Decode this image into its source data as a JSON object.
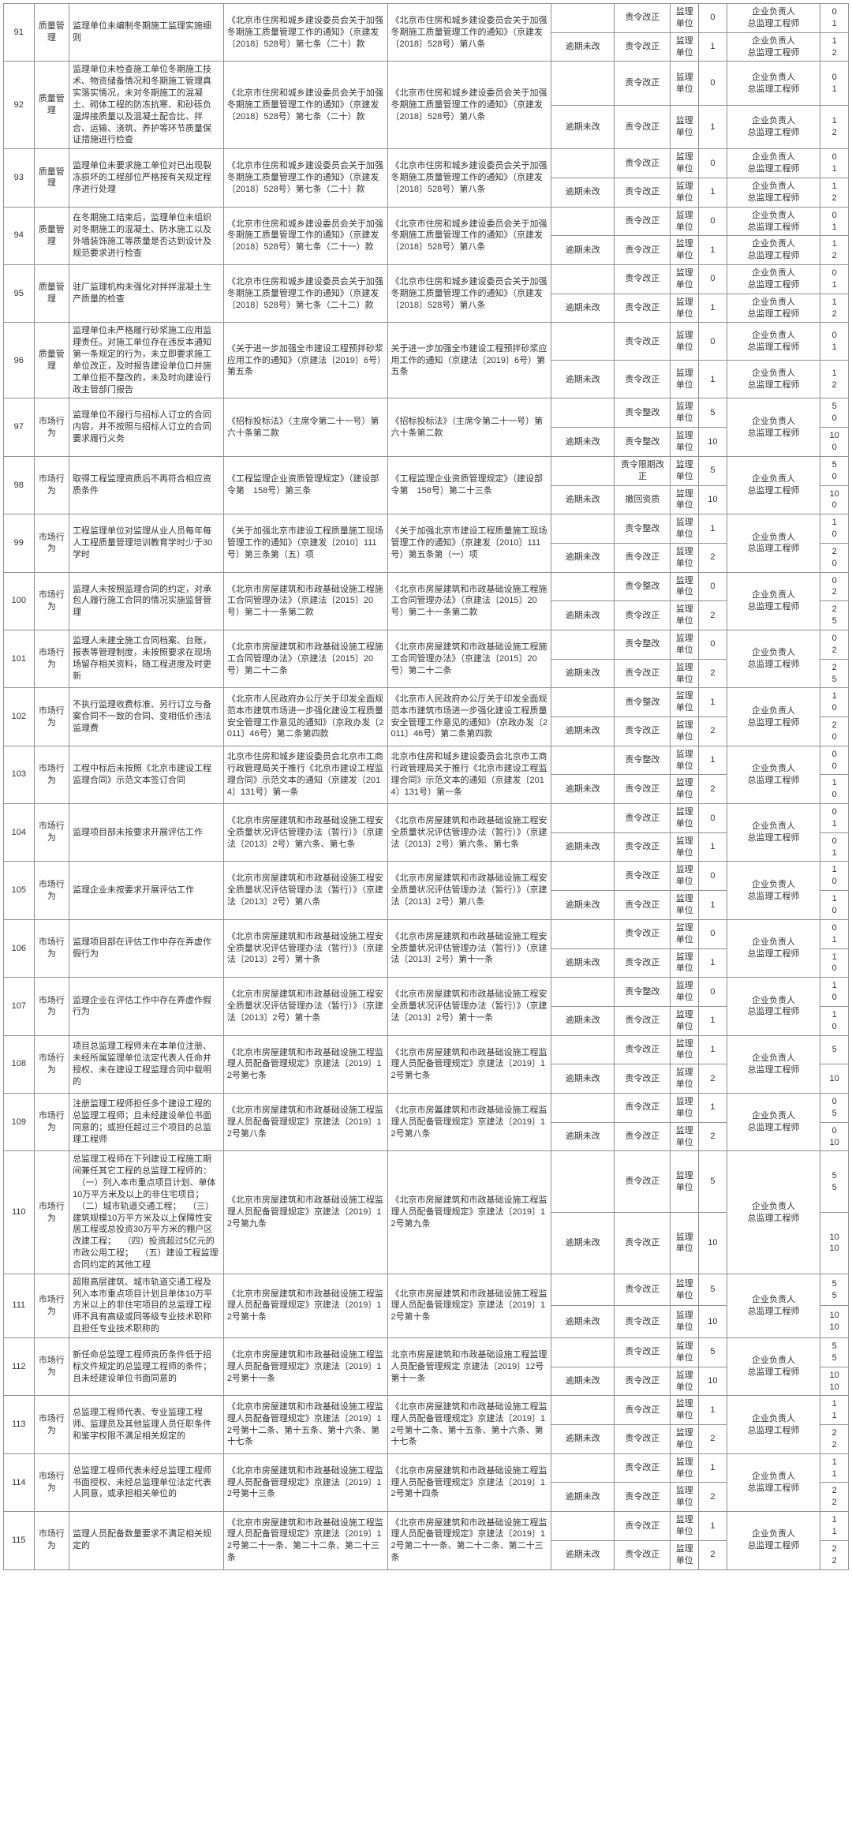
{
  "style": {
    "font_size_pt": 8,
    "border_color": "#909090",
    "text_color": "#333333",
    "background": "#ffffff"
  },
  "labels": {
    "cat_quality": "质量管理",
    "cat_market": "市场行为",
    "unit": "监理单位",
    "person": "企业负责人\n总监理工程师",
    "ord_correct": "责令改正",
    "overdue_no": "逾期未改",
    "ord_rectify": "责令整改",
    "ord_limit": "责令限期改正",
    "revoke": "撤回资质"
  },
  "rows": [
    {
      "idx": "91",
      "catKey": "cat_quality",
      "desc": "监理单位未编制冬期施工监理实施细则",
      "basis": "《北京市住房和城乡建设委员会关于加强冬期施工质量管理工作的通知》（京建发〔2018〕528号）第七条（二十）款",
      "ref": "《北京市住房和城乡建设委员会关于加强冬期施工质量管理工作的通知》（京建发〔2018〕528号）第八条",
      "outs": [
        {
          "blank": "",
          "measKey": "ord_correct",
          "n1": "0",
          "n2a": "0",
          "n2b": "1"
        },
        {
          "blank": "逾期未改",
          "measKey": "ord_correct",
          "n1": "1",
          "n2a": "1",
          "n2b": "2"
        }
      ]
    },
    {
      "idx": "92",
      "catKey": "cat_quality",
      "desc": "监理单位未检查施工单位冬期施工技术、物资储备情况和冬期施工管理真实落实情况，未对冬期施工的混凝土、砌体工程的防冻抗寒、和砂砾负温焊接质量以及混凝土配合比、拌合、运输、浇筑、养护等环节质量保证措施进行检查",
      "basis": "《北京市住房和城乡建设委员会关于加强冬期施工质量管理工作的通知》（京建发〔2018〕528号）第七条（二十）款",
      "ref": "《北京市住房和城乡建设委员会关于加强冬期施工质量管理工作的通知》（京建发〔2018〕528号）第八条",
      "outs": [
        {
          "blank": "",
          "measKey": "ord_correct",
          "n1": "0",
          "n2a": "0",
          "n2b": "1"
        },
        {
          "blank": "逾期未改",
          "measKey": "ord_correct",
          "n1": "1",
          "n2a": "1",
          "n2b": "2"
        }
      ]
    },
    {
      "idx": "93",
      "catKey": "cat_quality",
      "desc": "监理单位未要求施工单位对已出现裂冻损坏的工程部位严格按有关规定程序进行处理",
      "basis": "《北京市住房和城乡建设委员会关于加强冬期施工质量管理工作的通知》（京建发〔2018〕528号）第七条（二十）款",
      "ref": "《北京市住房和城乡建设委员会关于加强冬期施工质量管理工作的通知》（京建发〔2018〕528号）第八条",
      "outs": [
        {
          "blank": "",
          "measKey": "ord_correct",
          "n1": "0",
          "n2a": "0",
          "n2b": "1"
        },
        {
          "blank": "逾期未改",
          "measKey": "ord_correct",
          "n1": "1",
          "n2a": "1",
          "n2b": "2"
        }
      ]
    },
    {
      "idx": "94",
      "catKey": "cat_quality",
      "desc": "在冬期施工结束后，监理单位未组织对冬期施工的混凝土、防水施工以及外墙装饰施工等质量是否达到设计及规范要求进行检查",
      "basis": "《北京市住房和城乡建设委员会关于加强冬期施工质量管理工作的通知》（京建发〔2018〕528号）第七条（二十一）款",
      "ref": "《北京市住房和城乡建设委员会关于加强冬期施工质量管理工作的通知》（京建发〔2018〕528号）第八条",
      "outs": [
        {
          "blank": "",
          "measKey": "ord_correct",
          "n1": "0",
          "n2a": "0",
          "n2b": "1"
        },
        {
          "blank": "逾期未改",
          "measKey": "ord_correct",
          "n1": "1",
          "n2a": "1",
          "n2b": "2"
        }
      ]
    },
    {
      "idx": "95",
      "catKey": "cat_quality",
      "desc": "驻厂监理机构未强化对拌拌混凝土生产质量的检查",
      "basis": "《北京市住房和城乡建设委员会关于加强冬期施工质量管理工作的通知》（京建发〔2018〕528号）第七条（二十二）款",
      "ref": "《北京市住房和城乡建设委员会关于加强冬期施工质量管理工作的通知》（京建发〔2018〕528号）第八条",
      "outs": [
        {
          "blank": "",
          "measKey": "ord_correct",
          "n1": "0",
          "n2a": "0",
          "n2b": "1"
        },
        {
          "blank": "逾期未改",
          "measKey": "ord_correct",
          "n1": "1",
          "n2a": "1",
          "n2b": "2"
        }
      ]
    },
    {
      "idx": "96",
      "catKey": "cat_quality",
      "desc": "监理单位未严格履行砂浆施工应用监理责任。对施工单位存在违反本通知第一条规定的行为，未立即要求施工单位改正，及时报告建设单位口并施工单位拒不整改的，未及时向建设行政主管部门报告",
      "basis": "《关于进一步加强全市建设工程预拌砂浆应用工作的通知》（京建法〔2019〕6号）第五条",
      "ref": "关于进一步加强全市建设工程预拌砂浆应用工作的通知（京建法〔2019〕6号）第五条",
      "outs": [
        {
          "blank": "",
          "measKey": "ord_correct",
          "n1": "0",
          "n2a": "0",
          "n2b": "1"
        },
        {
          "blank": "逾期未改",
          "measKey": "ord_correct",
          "n1": "1",
          "n2a": "1",
          "n2b": "2"
        }
      ]
    },
    {
      "idx": "97",
      "catKey": "cat_market",
      "desc": "监理单位不履行与招标人订立的合同内容，并不按照与招标人订立的合同要求履行义务",
      "basis": "《招标投标法》（主席令第二十一号）第六十条第二款",
      "ref": "《招标投标法》（主席令第二十一号）第六十条第二款",
      "personMerged": true,
      "outs": [
        {
          "blank": "",
          "measKey": "ord_rectify",
          "n1": "5",
          "n2a": "5",
          "n2b": "0"
        },
        {
          "blank": "逾期未改",
          "measKey": "ord_rectify",
          "n1": "10",
          "n2a": "10",
          "n2b": "0"
        }
      ]
    },
    {
      "idx": "98",
      "catKey": "cat_market",
      "desc": "取得工程监理资质后不再符合相应资质条件",
      "basis": "《工程监理企业资质管理规定》（建设部令第　158号）第三条",
      "ref": "《工程监理企业资质管理规定》（建设部令第　158号）第二十三条",
      "personMerged": true,
      "outs": [
        {
          "blank": "",
          "measKey": "ord_limit",
          "n1": "5",
          "n2a": "5",
          "n2b": "0"
        },
        {
          "blank": "逾期未改",
          "measKey": "revoke",
          "n1": "10",
          "n2a": "10",
          "n2b": "0"
        }
      ]
    },
    {
      "idx": "99",
      "catKey": "cat_market",
      "desc": "工程监理单位对监理从业人员每年每人工程质量管理培训教育学时少于30学时",
      "basis": "《关于加强北京市建设工程质量施工现场管理工作的通知》（京建发〔2010〕111号）第三条第（五）项",
      "ref": "《关于加强北京市建设工程质量施工现场管理工作的通知》（京建发〔2010〕111号）第五条第（一）项",
      "personMerged": true,
      "outs": [
        {
          "blank": "",
          "measKey": "ord_rectify",
          "n1": "1",
          "n2a": "1",
          "n2b": "0"
        },
        {
          "blank": "逾期未改",
          "measKey": "ord_correct",
          "n1": "2",
          "n2a": "2",
          "n2b": "0"
        }
      ]
    },
    {
      "idx": "100",
      "catKey": "cat_market",
      "desc": "监理人未按照监理合同的约定，对承包人履行施工合同的情况实施监督管理",
      "basis": "《北京市房屋建筑和市政基础设施工程施工合同管理办法》（京建法〔2015〕20号）第二十一条第二款",
      "ref": "《北京市房屋建筑和市政基础设施工程施工合同管理办法》（京建法〔2015〕20号）第二十一条第二款",
      "personMerged": true,
      "outs": [
        {
          "blank": "",
          "measKey": "ord_rectify",
          "n1": "0",
          "n2a": "0",
          "n2b": "2"
        },
        {
          "blank": "逾期未改",
          "measKey": "ord_correct",
          "n1": "2",
          "n2a": "2",
          "n2b": "5"
        }
      ]
    },
    {
      "idx": "101",
      "catKey": "cat_market",
      "desc": "监理人未建全施工合同档案、台账，报表等管理制度，未按照要求在现场场留存相关资料，随工程进度及时更新",
      "basis": "《北京市房屋建筑和市政基础设施工程施工合同管理办法》（京建法〔2015〕20号）第二十二条",
      "ref": "《北京市房屋建筑和市政基础设施工程施工合同管理办法》（京建法〔2015〕20号）第二十二条",
      "personMerged": true,
      "outs": [
        {
          "blank": "",
          "measKey": "ord_rectify",
          "n1": "0",
          "n2a": "0",
          "n2b": "2"
        },
        {
          "blank": "逾期未改",
          "measKey": "ord_correct",
          "n1": "2",
          "n2a": "2",
          "n2b": "5"
        }
      ]
    },
    {
      "idx": "102",
      "catKey": "cat_market",
      "desc": "不执行监理收费标准、另行订立与备案合同不一致的合同、变相低价违法监理费",
      "basis": "《北京市人民政府办公厅关于印发全面规范本市建筑市场进一步强化建设工程质量安全管理工作意见的通知》（京政办发〔2011〕46号）第二条第四款",
      "ref": "《北京市人民政府办公厅关于印发全面规范本市建筑市场进一步强化建设工程质量安全管理工作意见的通知》（京政办发〔2011〕46号）第二条第四款",
      "personMerged": true,
      "outs": [
        {
          "blank": "",
          "measKey": "ord_rectify",
          "n1": "1",
          "n2a": "1",
          "n2b": "0"
        },
        {
          "blank": "逾期未改",
          "measKey": "ord_correct",
          "n1": "2",
          "n2a": "2",
          "n2b": "0"
        }
      ]
    },
    {
      "idx": "103",
      "catKey": "cat_market",
      "desc": "工程中标后未按照《北京市建设工程监理合同》示范文本签订合同",
      "basis": "北京市住房和城乡建设委员会北京市工商行政管理局关于推行《北京市建设工程监理合同》示范文本的通知（京建发〔2014〕131号）第一条",
      "ref": "北京市住房和城乡建设委员会北京市工商行政管理局关于推行《北京市建设工程监理合同》示范文本的通知（京建发〔2014〕131号）第一条",
      "personMerged": true,
      "outs": [
        {
          "blank": "",
          "measKey": "ord_rectify",
          "n1": "1",
          "n2a": "0",
          "n2b": "0"
        },
        {
          "blank": "逾期未改",
          "measKey": "ord_correct",
          "n1": "2",
          "n2a": "1",
          "n2b": "0"
        }
      ]
    },
    {
      "idx": "104",
      "catKey": "cat_market",
      "desc": "监理项目部未按要求开展评估工作",
      "basis": "《北京市房屋建筑和市政基础设施工程安全质量状况评估管理办法（暂行）》（京建法〔2013〕2号）第六条、第七条",
      "ref": "《北京市房屋建筑和市政基础设施工程安全质量状况评估管理办法（暂行）》（京建法〔2013〕2号）第六条、第七条",
      "personMerged": true,
      "outs": [
        {
          "blank": "",
          "measKey": "ord_correct",
          "n1": "0",
          "n2a": "0",
          "n2b": "1"
        },
        {
          "blank": "逾期未改",
          "measKey": "ord_correct",
          "n1": "1",
          "n2a": "0",
          "n2b": "1"
        }
      ]
    },
    {
      "idx": "105",
      "catKey": "cat_market",
      "desc": "监理企业未按要求开展评估工作",
      "basis": "《北京市房屋建筑和市政基础设施工程安全质量状况评估管理办法（暂行）》（京建法〔2013〕2号）第八条",
      "ref": "《北京市房屋建筑和市政基础设施工程安全质量状况评估管理办法（暂行）》（京建法〔2013〕2号）第八条",
      "personMerged": true,
      "outs": [
        {
          "blank": "",
          "measKey": "ord_correct",
          "n1": "0",
          "n2a": "1",
          "n2b": "0"
        },
        {
          "blank": "逾期未改",
          "measKey": "ord_correct",
          "n1": "1",
          "n2a": "1",
          "n2b": "0"
        }
      ]
    },
    {
      "idx": "106",
      "catKey": "cat_market",
      "desc": "监理项目部在评估工作中存在弄虚作假行为",
      "basis": "《北京市房屋建筑和市政基础设施工程安全质量状况评估管理办法（暂行）》（京建法〔2013〕2号）第十条",
      "ref": "《北京市房屋建筑和市政基础设施工程安全质量状况评估管理办法（暂行）》（京建法〔2013〕2号）第十一条",
      "personMerged": true,
      "outs": [
        {
          "blank": "",
          "measKey": "ord_correct",
          "n1": "0",
          "n2a": "0",
          "n2b": "1"
        },
        {
          "blank": "逾期未改",
          "measKey": "ord_correct",
          "n1": "1",
          "n2a": "1",
          "n2b": "0"
        }
      ]
    },
    {
      "idx": "107",
      "catKey": "cat_market",
      "desc": "监理企业在评估工作中存在弄虚作假行为",
      "basis": "《北京市房屋建筑和市政基础设施工程安全质量状况评估管理办法（暂行）》（京建法〔2013〕2号）第十条",
      "ref": "《北京市房屋建筑和市政基础设施工程安全质量状况评估管理办法（暂行）》（京建法〔2013〕2号）第十一条",
      "personMerged": true,
      "outs": [
        {
          "blank": "",
          "measKey": "ord_rectify",
          "n1": "0",
          "n2a": "1",
          "n2b": "0"
        },
        {
          "blank": "逾期未改",
          "measKey": "ord_correct",
          "n1": "1",
          "n2a": "1",
          "n2b": "0"
        }
      ]
    },
    {
      "idx": "108",
      "catKey": "cat_market",
      "desc": "项目总监理工程师未在本单位注册、未经所属监理单位法定代表人任命并授权、未在建设工程监理合同中载明的",
      "basis": "《北京市房屋建筑和市政基础设施工程监理人员配备管理规定》京建法〔2019〕12号第七条",
      "ref": "《北京市房屋建筑和市政基础设施工程监理人员配备管理规定》京建法〔2019〕12号第七条",
      "personMerged": true,
      "outs": [
        {
          "blank": "",
          "measKey": "ord_correct",
          "n1": "1",
          "n2a": "5",
          "n2b": ""
        },
        {
          "blank": "逾期未改",
          "measKey": "ord_correct",
          "n1": "2",
          "n2a": "10",
          "n2b": ""
        }
      ]
    },
    {
      "idx": "109",
      "catKey": "cat_market",
      "desc": "注册监理工程师担任多个建设工程的总监理工程师；且未经建设单位书面同意的；或担任超过三个项目的总监理工程师",
      "basis": "《北京市房屋建筑和市政基础设施工程监理人员配备管理规定》京建法〔2019〕12号第八条",
      "ref": "《北京市房屭建筑和市政基础设施工程监理人员配备管理规定》京建法〔2019〕12号第八条",
      "personMerged": true,
      "outs": [
        {
          "blank": "",
          "measKey": "ord_correct",
          "n1": "1",
          "n2a": "0",
          "n2b": "5"
        },
        {
          "blank": "逾期未改",
          "measKey": "ord_correct",
          "n1": "2",
          "n2a": "0",
          "n2b": "10"
        }
      ]
    },
    {
      "idx": "110",
      "catKey": "cat_market",
      "desc": "总监理工程师在下列建设工程施工期间兼任其它工程的总监理工程师的：\n　（一）列入本市重点项目计划、单体10万平方米及以上的非住宅项目；\n　（二）城市轨道交通工程；\n　（三）建筑规模10万平方米及以上保障性安居工程或总投资30万平方米的棚户区改建工程；\n　（四）投资超过5亿元的市政公用工程；\n　（五）建设工程监理合同约定的其他工程",
      "basis": "《北京市房屋建筑和市政基础设施工程监理人员配备管理规定》京建法〔2019〕12号第九条",
      "ref": "《北京市房屋建筑和市政基础设施工程监理人员配备管理规定》京建法〔2019〕12号第九条",
      "personMerged": true,
      "outs": [
        {
          "blank": "",
          "measKey": "ord_correct",
          "n1": "5",
          "n2a": "5",
          "n2b": "5"
        },
        {
          "blank": "逾期未改",
          "measKey": "ord_correct",
          "n1": "10",
          "n2a": "10",
          "n2b": "10"
        }
      ]
    },
    {
      "idx": "111",
      "catKey": "cat_market",
      "desc": "超限高层建筑、城市轨道交通工程及列入本市重点项目计划且单体10万平方米以上的非住宅项目的总监理工程师不具有高级或同等级专业技术职称且担任专业技术职称的",
      "basis": "《北京市房屋建筑和市政基础设施工程监理人员配备管理规定》京建法〔2019〕12号第十条",
      "ref": "《北京市房屋建筑和市政基础设施工程监理人员配备管理规定》京建法〔2019〕12号第十条",
      "personMerged": true,
      "outs": [
        {
          "blank": "",
          "measKey": "ord_correct",
          "n1": "5",
          "n2a": "5",
          "n2b": "5"
        },
        {
          "blank": "逾期未改",
          "measKey": "ord_correct",
          "n1": "10",
          "n2a": "10",
          "n2b": "10"
        }
      ]
    },
    {
      "idx": "112",
      "catKey": "cat_market",
      "desc": "新任命总监理工程师资历条件低于招标文件规定的总监理工程师的条件；且未经建设单位书面同意的",
      "basis": "《北京市房屋建筑和市政基础设施工程监理人员配备管理规定》京建法〔2019〕12号第十一条",
      "ref": "北京市房屋建筑和市政基础设施工程监理人员配备管理规定 京建法〔2019〕12号第十一条",
      "personMerged": true,
      "outs": [
        {
          "blank": "",
          "measKey": "ord_correct",
          "n1": "5",
          "n2a": "5",
          "n2b": "5"
        },
        {
          "blank": "逾期未改",
          "measKey": "ord_correct",
          "n1": "10",
          "n2a": "10",
          "n2b": "10"
        }
      ]
    },
    {
      "idx": "113",
      "catKey": "cat_market",
      "desc": "总监理工程师代表、专业监理工程师、监理员及其他监理人员任职条件和鉴字权限不满足相关规定的",
      "basis": "《北京市房屋建筑和市政基础设施工程监理人员配备管理规定》京建法〔2019〕12号第十二条、第十五条、第十六条、第十七条",
      "ref": "《北京市房屋建筑和市政基础设施工程监理人员配备管理规定》京建法〔2019〕12号第十二条、第十五条、第十六条、第十七条",
      "personMerged": true,
      "outs": [
        {
          "blank": "",
          "measKey": "ord_correct",
          "n1": "1",
          "n2a": "1",
          "n2b": "1"
        },
        {
          "blank": "逾期未改",
          "measKey": "ord_correct",
          "n1": "2",
          "n2a": "2",
          "n2b": "2"
        }
      ]
    },
    {
      "idx": "114",
      "catKey": "cat_market",
      "desc": "总监理工程师代表未经总监理工程师书面授权、未经总监理单位法定代表人同意，或承担相关单位的",
      "basis": "《北京市房屋建筑和市政基础设施工程监理人员配备管理规定》京建法〔2019〕12号第十三条",
      "ref": "《北京市房屋建筑和市政基础设施工程监理人员配备管理规定》京建法〔2019〕12号第十四条",
      "personMerged": true,
      "outs": [
        {
          "blank": "",
          "measKey": "ord_correct",
          "n1": "1",
          "n2a": "1",
          "n2b": "1"
        },
        {
          "blank": "逾期未改",
          "measKey": "ord_correct",
          "n1": "2",
          "n2a": "2",
          "n2b": "2"
        }
      ]
    },
    {
      "idx": "115",
      "catKey": "cat_market",
      "desc": "监理人员配备数量要求不满足相关规定的",
      "basis": "《北京市房屋建筑和市政基础设施工程监理人员配备管理规定》京建法〔2019〕12号第二十一条、第二十二条、第二十三条",
      "ref": "《北京市房屋建筑和市政基础设施工程监理人员配备管理规定》京建法〔2019〕12号第二十一条、第二十二条、第二十三条",
      "personMerged": true,
      "outs": [
        {
          "blank": "",
          "measKey": "ord_correct",
          "n1": "1",
          "n2a": "1",
          "n2b": "1"
        },
        {
          "blank": "逾期未改",
          "measKey": "ord_correct",
          "n1": "2",
          "n2a": "2",
          "n2b": "2"
        }
      ]
    }
  ]
}
